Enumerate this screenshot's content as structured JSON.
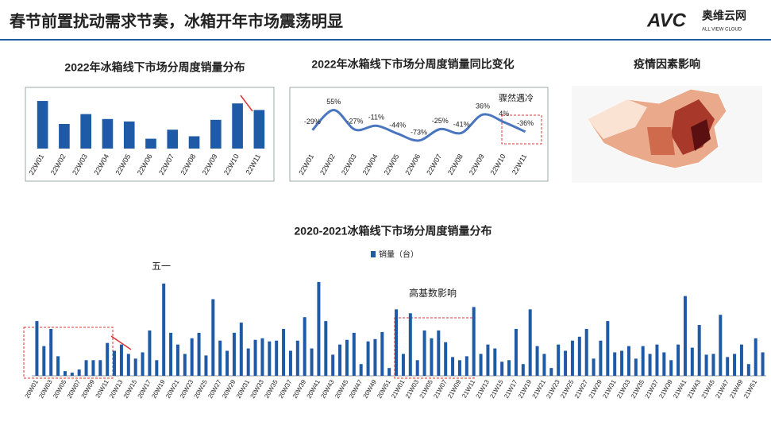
{
  "header": {
    "title": "春节前置扰动需求节奏，冰箱开年市场震荡明显",
    "logo": "AVC",
    "logo_cn": "奥维云网",
    "logo_en": "ALL VIEW CLOUD"
  },
  "chart_data": [
    {
      "type": "bar",
      "title": "2022年冰箱线下市场分周度销量分布",
      "categories": [
        "22W01",
        "22W02",
        "22W03",
        "22W04",
        "22W05",
        "22W06",
        "22W07",
        "22W08",
        "22W09",
        "22W10",
        "22W11"
      ],
      "values": [
        58,
        30,
        42,
        36,
        33,
        12,
        23,
        15,
        35,
        55,
        47
      ],
      "color": "#1f5aa6",
      "ylim": [
        0,
        60
      ]
    },
    {
      "type": "line",
      "title": "2022年冰箱线下市场分周度销量同比变化",
      "categories": [
        "22W01",
        "22W02",
        "22W03",
        "22W04",
        "22W05",
        "22W06",
        "22W07",
        "22W08",
        "22W09",
        "22W10",
        "22W11"
      ],
      "values": [
        -29,
        55,
        -27,
        -11,
        -44,
        -73,
        -25,
        -41,
        36,
        4,
        -36
      ],
      "value_labels": [
        "-29%",
        "55%",
        "-27%",
        "-11%",
        "-44%",
        "-73%",
        "-25%",
        "-41%",
        "36%",
        "4%",
        "-36%"
      ],
      "color": "#4a76bf",
      "ylim": [
        -100,
        100
      ],
      "annotation": "骤然遇冷"
    },
    {
      "type": "map",
      "title": "疫情因素影响"
    },
    {
      "type": "bar",
      "title": "2020-2021冰箱线下市场分周度销量分布",
      "legend": "销量（台）",
      "annotations": [
        "五一",
        "高基数影响"
      ],
      "color": "#1f5aa6",
      "ylim": [
        0,
        125
      ],
      "categories": [
        "20W01",
        null,
        "20W03",
        null,
        "20W05",
        null,
        "20W07",
        null,
        "20W09",
        null,
        "20W11",
        null,
        "20W13",
        null,
        "20W15",
        null,
        "20W17",
        null,
        "20W19",
        null,
        "20W21",
        null,
        "20W23",
        null,
        "20W25",
        null,
        "20W27",
        null,
        "20W29",
        null,
        "20W31",
        null,
        "20W33",
        null,
        "20W35",
        null,
        "20W37",
        null,
        "20W39",
        null,
        "20W41",
        null,
        "20W43",
        null,
        "20W45",
        null,
        "20W47",
        null,
        "20W49",
        null,
        "20W51",
        null,
        "21W01",
        null,
        "21W03",
        null,
        "21W05",
        null,
        "21W07",
        null,
        "21W09",
        null,
        "21W11",
        null,
        "21W13",
        null,
        "21W15",
        null,
        "21W17",
        null,
        "21W19",
        null,
        "21W21",
        null,
        "21W23",
        null,
        "21W25",
        null,
        "21W27",
        null,
        "21W29",
        null,
        "21W31",
        null,
        "21W33",
        null,
        "21W35",
        null,
        "21W37",
        null,
        "21W39",
        null,
        "21W41",
        null,
        "21W43",
        null,
        "21W45",
        null,
        "21W47",
        null,
        "21W49",
        null,
        "21W51",
        null
      ],
      "values": [
        70,
        38,
        60,
        25,
        6,
        4,
        8,
        20,
        20,
        20,
        42,
        32,
        40,
        28,
        22,
        30,
        58,
        20,
        118,
        55,
        40,
        28,
        48,
        55,
        26,
        98,
        45,
        32,
        55,
        68,
        35,
        46,
        48,
        44,
        45,
        60,
        32,
        45,
        75,
        35,
        120,
        70,
        27,
        40,
        46,
        55,
        15,
        44,
        47,
        56,
        10,
        85,
        28,
        80,
        20,
        58,
        48,
        58,
        43,
        24,
        20,
        25,
        88,
        28,
        40,
        35,
        18,
        20,
        60,
        15,
        85,
        38,
        28,
        10,
        40,
        32,
        45,
        50,
        60,
        22,
        45,
        70,
        30,
        32,
        38,
        22,
        38,
        28,
        40,
        30,
        20,
        40,
        102,
        36,
        65,
        27,
        28,
        78,
        24,
        28,
        40,
        15,
        48,
        30
      ]
    }
  ]
}
